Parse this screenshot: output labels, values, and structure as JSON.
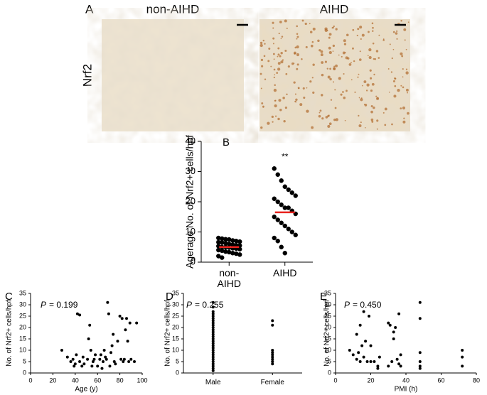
{
  "panel_a": {
    "label": "A",
    "columns": [
      "non-AIHD",
      "AIHD"
    ],
    "row_label": "Nrf2"
  },
  "chart_data": [
    {
      "type": "strip",
      "panel_label": "B",
      "y_label": "Agerage No. of Nrf2+ cells/hpf",
      "categories": [
        "non-\nAIHD",
        "AIHD"
      ],
      "color": "#000000",
      "mean_color": "#e8231f",
      "groups": [
        [
          8,
          7.8,
          7.6,
          7.5,
          7.2,
          7,
          6.8,
          6.6,
          6.5,
          6.3,
          6,
          5.8,
          5.6,
          5.5,
          5.3,
          5,
          5,
          4.8,
          4.6,
          4.5,
          4.3,
          4,
          3.8,
          3.5,
          3.3,
          3,
          2.8,
          2.5,
          2,
          1.5
        ],
        [
          31,
          29,
          27,
          25,
          24,
          23,
          22,
          21,
          20,
          19,
          18,
          18,
          17,
          16,
          15,
          14,
          13,
          12,
          11,
          10,
          9,
          8,
          7,
          5,
          3
        ]
      ],
      "means": [
        5,
        16.5
      ],
      "annotations": [
        null,
        "**"
      ],
      "ylim": [
        0,
        40
      ],
      "yticks": [
        0,
        10,
        20,
        30,
        40
      ]
    },
    {
      "type": "scatter",
      "panel_label": "C",
      "p_symbol": "P",
      "p_text": "= 0.199",
      "x_label": "Age (y)",
      "y_label": "No. of Nrf2+ cells/hpf",
      "color": "#000000",
      "x": [
        28,
        33,
        36,
        38,
        39,
        40,
        41,
        42,
        44,
        44,
        46,
        47,
        48,
        51,
        52,
        53,
        54,
        55,
        56,
        57,
        58,
        60,
        62,
        63,
        64,
        65,
        66,
        67,
        68,
        69,
        70,
        71,
        72,
        73,
        74,
        75,
        76,
        78,
        80,
        81,
        82,
        83,
        84,
        85,
        86,
        87,
        88,
        89,
        90,
        93,
        95
      ],
      "values": [
        10,
        7,
        5,
        6,
        3,
        4,
        8,
        26,
        25.5,
        5,
        3,
        7,
        4,
        6,
        15,
        21,
        10,
        3,
        5,
        6,
        8,
        3,
        6,
        8,
        2,
        5,
        10,
        7,
        6,
        31,
        26,
        3,
        9,
        12,
        17,
        5,
        4,
        14,
        25,
        6,
        24,
        5,
        6,
        19,
        24,
        14,
        5,
        22,
        6,
        5,
        22
      ],
      "xlim": [
        0,
        100
      ],
      "xticks": [
        0,
        20,
        40,
        60,
        80,
        100
      ],
      "ylim": [
        0,
        35
      ],
      "yticks": [
        0,
        5,
        10,
        15,
        20,
        25,
        30,
        35
      ]
    },
    {
      "type": "strip",
      "panel_label": "D",
      "p_symbol": "P",
      "p_text": "= 0.255",
      "y_label": "No. of Nrf2+ cells/hpf",
      "categories": [
        "Male",
        "Female"
      ],
      "color": "#000000",
      "groups": [
        [
          31,
          29,
          27,
          26,
          25,
          24,
          23,
          22,
          21,
          20,
          19,
          18,
          17,
          16,
          15,
          14,
          13,
          12,
          11,
          10,
          9,
          8,
          7,
          6,
          5,
          4,
          3,
          2,
          1
        ],
        [
          23,
          21,
          10,
          9,
          8,
          7,
          6,
          5,
          4
        ]
      ],
      "ylim": [
        0,
        35
      ],
      "yticks": [
        0,
        5,
        10,
        15,
        20,
        25,
        30,
        35
      ]
    },
    {
      "type": "scatter",
      "panel_label": "E",
      "p_symbol": "P",
      "p_text": "= 0.450",
      "x_label": "PMI (h)",
      "y_label": "No. of Nrf2+ cells/hpf",
      "color": "#000000",
      "x": [
        8,
        10,
        12,
        12,
        13,
        14,
        14,
        15,
        16,
        16,
        17,
        18,
        19,
        20,
        20,
        22,
        24,
        24,
        25,
        30,
        30,
        31,
        32,
        33,
        33,
        34,
        35,
        36,
        36,
        37,
        37,
        48,
        48,
        48,
        48,
        48,
        48,
        72,
        72,
        72
      ],
      "values": [
        10,
        8,
        6,
        17,
        9,
        21,
        5,
        12,
        27,
        7,
        14,
        5,
        25,
        5,
        12,
        5,
        3,
        2,
        7,
        22,
        3,
        21,
        5,
        15,
        18,
        20,
        6,
        26,
        4,
        8,
        3,
        31,
        24,
        9,
        5,
        3,
        2,
        10,
        7,
        3
      ],
      "xlim": [
        0,
        80
      ],
      "xticks": [
        0,
        20,
        40,
        60,
        80
      ],
      "ylim": [
        0,
        35
      ],
      "yticks": [
        0,
        5,
        10,
        15,
        20,
        25,
        30,
        35
      ]
    }
  ]
}
